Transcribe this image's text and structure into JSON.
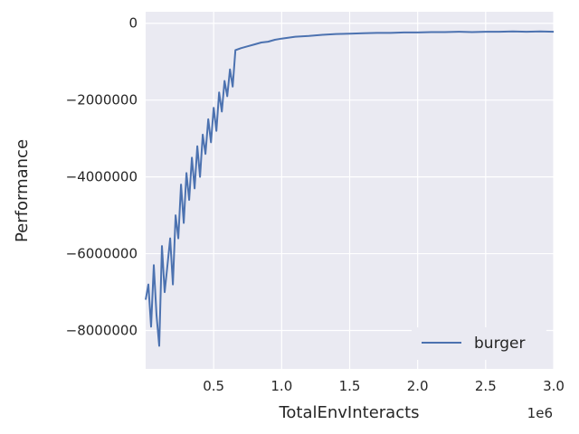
{
  "chart_data": {
    "type": "line",
    "xlabel": "TotalEnvInteracts",
    "ylabel": "Performance",
    "x_offset_label": "1e6",
    "xlim": [
      0,
      3.0
    ],
    "ylim": [
      -9000000,
      300000
    ],
    "xticks": [
      0.5,
      1.0,
      1.5,
      2.0,
      2.5,
      3.0
    ],
    "xtick_labels": [
      "0.5",
      "1.0",
      "1.5",
      "2.0",
      "2.5",
      "3.0"
    ],
    "yticks": [
      0,
      -2000000,
      -4000000,
      -6000000,
      -8000000
    ],
    "ytick_labels": [
      "0",
      "−2000000",
      "−4000000",
      "−6000000",
      "−8000000"
    ],
    "grid": true,
    "legend_position": "lower-right",
    "series": [
      {
        "name": "burger",
        "color": "#4c72b0",
        "x": [
          0.0,
          0.02,
          0.04,
          0.06,
          0.08,
          0.1,
          0.12,
          0.14,
          0.16,
          0.18,
          0.2,
          0.22,
          0.24,
          0.26,
          0.28,
          0.3,
          0.32,
          0.34,
          0.36,
          0.38,
          0.4,
          0.42,
          0.44,
          0.46,
          0.48,
          0.5,
          0.52,
          0.54,
          0.56,
          0.58,
          0.6,
          0.62,
          0.64,
          0.66,
          0.7,
          0.75,
          0.8,
          0.85,
          0.9,
          0.95,
          1.0,
          1.1,
          1.2,
          1.3,
          1.4,
          1.5,
          1.6,
          1.7,
          1.8,
          1.9,
          2.0,
          2.1,
          2.2,
          2.3,
          2.4,
          2.5,
          2.6,
          2.7,
          2.8,
          2.9,
          3.0
        ],
        "y": [
          -7200000,
          -6800000,
          -7900000,
          -6300000,
          -7600000,
          -8400000,
          -5800000,
          -7000000,
          -6300000,
          -5600000,
          -6800000,
          -5000000,
          -5600000,
          -4200000,
          -5200000,
          -3900000,
          -4600000,
          -3500000,
          -4300000,
          -3200000,
          -4000000,
          -2900000,
          -3400000,
          -2500000,
          -3100000,
          -2200000,
          -2800000,
          -1800000,
          -2300000,
          -1500000,
          -1900000,
          -1200000,
          -1650000,
          -700000,
          -650000,
          -600000,
          -550000,
          -500000,
          -480000,
          -430000,
          -400000,
          -350000,
          -330000,
          -300000,
          -280000,
          -270000,
          -260000,
          -250000,
          -250000,
          -240000,
          -240000,
          -230000,
          -230000,
          -220000,
          -230000,
          -220000,
          -220000,
          -210000,
          -220000,
          -210000,
          -220000
        ]
      }
    ]
  }
}
